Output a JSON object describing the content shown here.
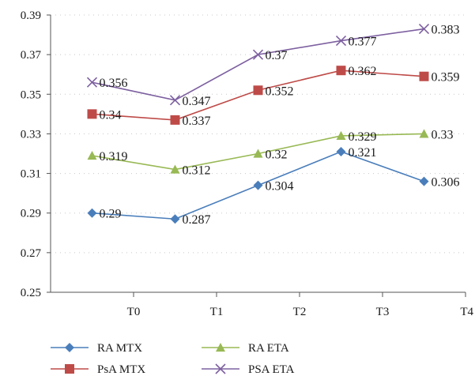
{
  "chart_data": {
    "type": "line",
    "title": "",
    "xlabel": "",
    "ylabel": "",
    "categories": [
      "T0",
      "T1",
      "T2",
      "T3",
      "T4"
    ],
    "ylim": [
      0.25,
      0.39
    ],
    "yticks": [
      "0.25",
      "0.27",
      "0.29",
      "0.31",
      "0.33",
      "0.35",
      "0.37",
      "0.39"
    ],
    "grid": "horizontal dotted",
    "legend_position": "bottom",
    "series": [
      {
        "name": "RA MTX",
        "color": "#4a7ebb",
        "marker": "diamond",
        "values": [
          0.29,
          0.287,
          0.304,
          0.321,
          0.306
        ],
        "labels": [
          "0.29",
          "0.287",
          "0.304",
          "0.321",
          "0.306"
        ]
      },
      {
        "name": "PsA MTX",
        "color": "#be4b48",
        "marker": "square",
        "values": [
          0.34,
          0.337,
          0.352,
          0.362,
          0.359
        ],
        "labels": [
          "0.34",
          "0.337",
          "0.352",
          "0.362",
          "0.359"
        ]
      },
      {
        "name": "RA ETA",
        "color": "#98b954",
        "marker": "triangle",
        "values": [
          0.319,
          0.312,
          0.32,
          0.329,
          0.33
        ],
        "labels": [
          "0.319",
          "0.312",
          "0.32",
          "0.329",
          "0.33"
        ]
      },
      {
        "name": "PSA ETA",
        "color": "#7d60a0",
        "marker": "x",
        "values": [
          0.356,
          0.347,
          0.37,
          0.377,
          0.383
        ],
        "labels": [
          "0.356",
          "0.347",
          "0.37",
          "0.377",
          "0.383"
        ]
      }
    ]
  }
}
